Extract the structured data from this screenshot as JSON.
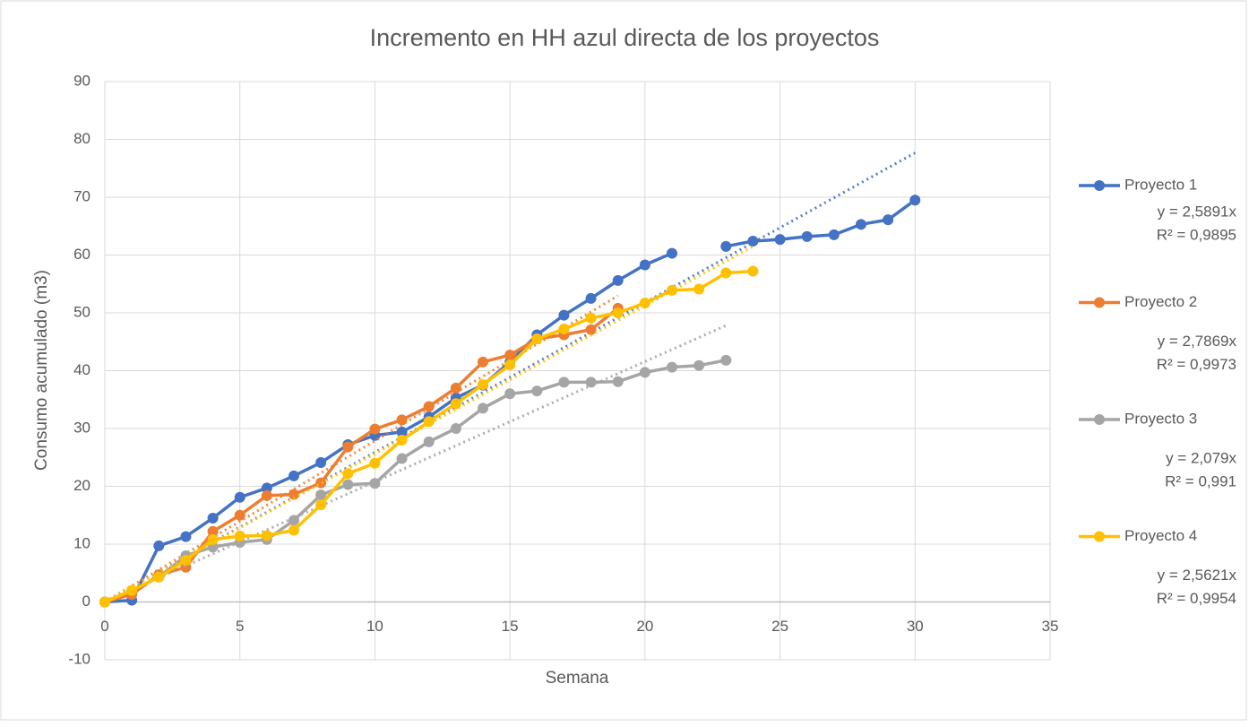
{
  "chart_data": {
    "type": "line",
    "title": "Incremento en HH azul directa de los proyectos",
    "x_label": "Semana",
    "y_label": "Consumo acumulado (m3)",
    "x": [
      0,
      1,
      2,
      3,
      4,
      5,
      6,
      7,
      8,
      9,
      10,
      11,
      12,
      13,
      14,
      15,
      16,
      17,
      18,
      19,
      20,
      21,
      22,
      23,
      24,
      25,
      26,
      27,
      28,
      29,
      30
    ],
    "xlim": [
      0,
      35
    ],
    "xticks": [
      0,
      5,
      10,
      15,
      20,
      25,
      30,
      35
    ],
    "ylim": [
      -10,
      90
    ],
    "yticks": [
      -10,
      0,
      10,
      20,
      30,
      40,
      50,
      60,
      70,
      80,
      90
    ],
    "grid": true,
    "legend": "right",
    "series": [
      {
        "name": "Proyecto 1",
        "color": "#4472c4",
        "values": [
          0,
          0.3,
          9.7,
          11.3,
          14.5,
          18.1,
          19.7,
          21.8,
          24.1,
          27.2,
          28.8,
          29.4,
          32,
          35.3,
          37.5,
          41.5,
          46.2,
          49.6,
          52.5,
          55.6,
          58.3,
          60.3,
          null,
          61.5,
          62.4,
          62.7,
          63.2,
          63.5,
          65.3,
          66.1,
          69.5
        ],
        "trendline": {
          "slope": 2.5891,
          "equation": "y = 2,5891x",
          "r2": "R² = 0,9895"
        }
      },
      {
        "name": "Proyecto 2",
        "color": "#ed7d31",
        "values": [
          0,
          1.3,
          4.7,
          6,
          12.2,
          15,
          18.4,
          18.6,
          20.6,
          26.8,
          29.9,
          31.5,
          33.8,
          37,
          41.5,
          42.7,
          45.5,
          46.2,
          47.1,
          50.8,
          null,
          null,
          null,
          null,
          null,
          null,
          null,
          null,
          null,
          null,
          null
        ],
        "trendline": {
          "slope": 2.7869,
          "equation": "y = 2,7869x",
          "r2": "R² = 0,9973"
        }
      },
      {
        "name": "Proyecto 3",
        "color": "#a5a5a5",
        "values": [
          0,
          2,
          4.3,
          8,
          9.5,
          10.3,
          10.8,
          14.1,
          18.5,
          20.3,
          20.5,
          24.8,
          27.7,
          30,
          33.5,
          36,
          36.5,
          38,
          38,
          38.1,
          39.7,
          40.6,
          40.9,
          41.8,
          null,
          null,
          null,
          null,
          null,
          null,
          null
        ],
        "trendline": {
          "slope": 2.079,
          "equation": "y = 2,079x",
          "r2": "R² = 0,991"
        }
      },
      {
        "name": "Proyecto 4",
        "color": "#ffc000",
        "values": [
          0,
          2,
          4.3,
          7.2,
          10.8,
          11.4,
          11.5,
          12.4,
          16.8,
          22.2,
          24,
          28,
          31.2,
          34.3,
          37.6,
          41,
          45.5,
          47.2,
          49.1,
          50,
          51.7,
          53.9,
          54.1,
          56.9,
          57.2,
          null,
          null,
          null,
          null,
          null,
          null
        ],
        "trendline": {
          "slope": 2.5621,
          "equation": "y = 2,5621x",
          "r2": "R² = 0,9954"
        }
      }
    ]
  }
}
